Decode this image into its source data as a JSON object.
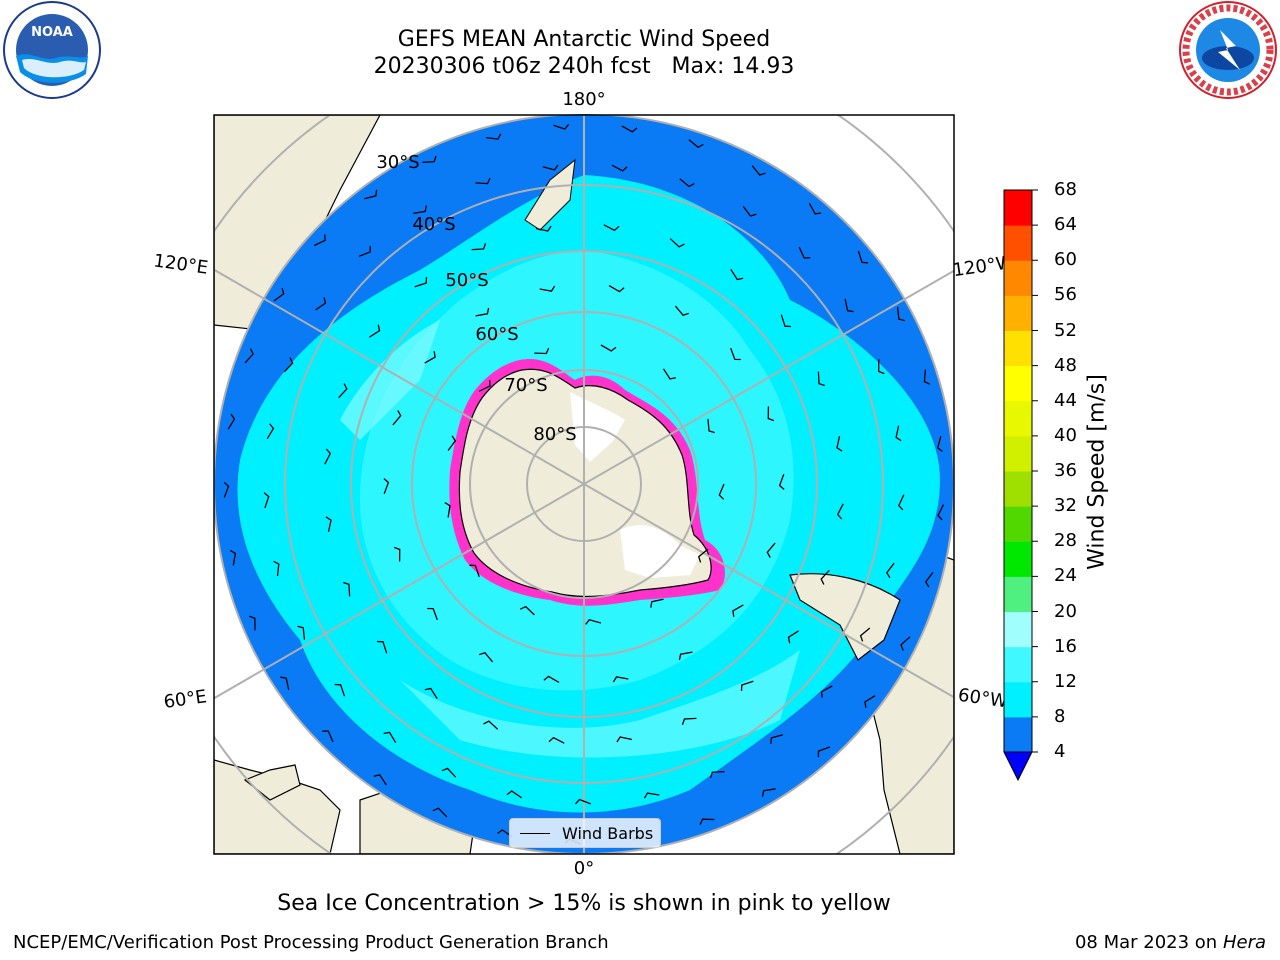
{
  "title": {
    "line1": "GEFS MEAN Antarctic Wind Speed",
    "line2": "20230306 t06z 240h fcst   Max: 14.93"
  },
  "logos": {
    "left": {
      "icon": "noaa-logo",
      "text": "NOAA"
    },
    "right": {
      "icon": "national-weather-service-logo",
      "text": "NATIONAL WEATHER SERVICE"
    }
  },
  "map": {
    "longitude_labels": {
      "top": "180°",
      "bottom": "0°",
      "upper_left": "120°E",
      "upper_right": "120°W",
      "lower_left": "60°E",
      "lower_right": "60°W"
    },
    "latitude_labels": [
      "30°S",
      "40°S",
      "50°S",
      "60°S",
      "70°S",
      "80°S"
    ],
    "legend_label": "Wind Barbs",
    "colors": {
      "ocean_low": "#0a7af5",
      "ocean_mid": "#00f0ff",
      "ocean_high": "#5ff8ff",
      "land": "#efedda",
      "ice": "#ff33cc",
      "grid": "#b0b0b0"
    }
  },
  "colorbar": {
    "title": "Wind Speed [m/s]",
    "ticks": [
      "4",
      "8",
      "12",
      "16",
      "20",
      "24",
      "28",
      "32",
      "36",
      "40",
      "44",
      "48",
      "52",
      "56",
      "60",
      "64",
      "68"
    ],
    "colors": [
      "#0a7af5",
      "#00f0ff",
      "#40f8ff",
      "#a0fffd",
      "#50f080",
      "#00e800",
      "#50d800",
      "#a0e000",
      "#d0f000",
      "#e8f800",
      "#ffff00",
      "#ffe000",
      "#ffb000",
      "#ff8800",
      "#ff5000",
      "#ff0000"
    ],
    "extend_color": "#0000ff"
  },
  "caption": "Sea Ice Concentration > 15% is shown in pink to yellow",
  "footer": {
    "left": "NCEP/EMC/Verification Post Processing Product Generation Branch",
    "date": "08 Mar 2023 on",
    "host": "Hera"
  }
}
